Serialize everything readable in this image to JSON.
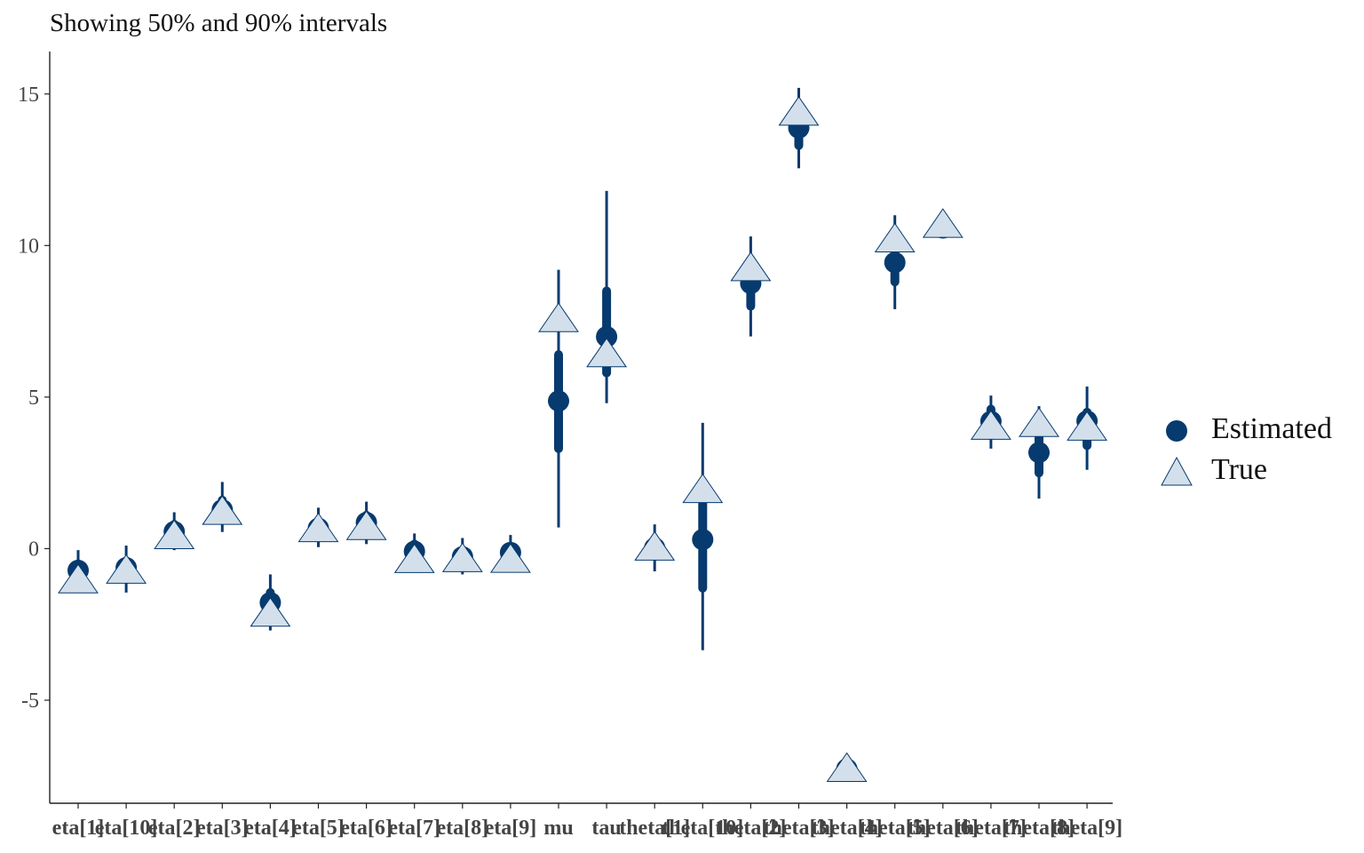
{
  "chart_data": {
    "type": "scatter",
    "subtitle": "Showing 50% and 90% intervals",
    "title": "",
    "xlabel": "",
    "ylabel": "",
    "ylim": [
      -8.4,
      16.4
    ],
    "yticks": [
      -5,
      0,
      5,
      10,
      15
    ],
    "colors": {
      "estimated": "#073a6e",
      "true_fill": "#d3e0ec",
      "true_stroke": "#073a6e"
    },
    "legend": {
      "position": "right",
      "entries": [
        "Estimated",
        "True"
      ]
    },
    "categories": [
      "eta[1]",
      "eta[10]",
      "eta[2]",
      "eta[3]",
      "eta[4]",
      "eta[5]",
      "eta[6]",
      "eta[7]",
      "eta[8]",
      "eta[9]",
      "mu",
      "tau",
      "theta[1]",
      "theta[10]",
      "theta[2]",
      "theta[3]",
      "theta[4]",
      "theta[5]",
      "theta[6]",
      "theta[7]",
      "theta[8]",
      "theta[9]"
    ],
    "series": [
      {
        "name": "Estimated",
        "values": [
          -0.72,
          -0.63,
          0.56,
          1.28,
          -1.78,
          0.67,
          0.86,
          -0.09,
          -0.27,
          -0.13,
          4.87,
          6.99,
          0.02,
          0.3,
          8.75,
          13.88,
          -7.27,
          9.44,
          10.58,
          4.2,
          3.17,
          4.21
        ],
        "ci50": [
          [
            -0.95,
            -0.5
          ],
          [
            -0.85,
            -0.4
          ],
          [
            0.3,
            0.8
          ],
          [
            1.0,
            1.6
          ],
          [
            -2.05,
            -1.45
          ],
          [
            0.45,
            0.9
          ],
          [
            0.6,
            1.1
          ],
          [
            -0.3,
            0.15
          ],
          [
            -0.45,
            -0.1
          ],
          [
            -0.3,
            0.05
          ],
          [
            3.3,
            6.4
          ],
          [
            5.8,
            8.5
          ],
          [
            -0.2,
            0.25
          ],
          [
            -1.3,
            1.7
          ],
          [
            8.0,
            9.4
          ],
          [
            13.3,
            14.4
          ],
          [
            -7.35,
            -7.2
          ],
          [
            8.8,
            10.0
          ],
          [
            10.45,
            10.72
          ],
          [
            3.8,
            4.6
          ],
          [
            2.5,
            3.8
          ],
          [
            3.4,
            4.5
          ]
        ],
        "ci90": [
          [
            -1.35,
            -0.05
          ],
          [
            -1.45,
            0.1
          ],
          [
            -0.05,
            1.2
          ],
          [
            0.55,
            2.2
          ],
          [
            -2.7,
            -0.85
          ],
          [
            0.05,
            1.35
          ],
          [
            0.15,
            1.55
          ],
          [
            -0.6,
            0.5
          ],
          [
            -0.85,
            0.35
          ],
          [
            -0.65,
            0.45
          ],
          [
            0.7,
            9.2
          ],
          [
            4.8,
            11.8
          ],
          [
            -0.75,
            0.8
          ],
          [
            -3.35,
            4.15
          ],
          [
            7.0,
            10.3
          ],
          [
            12.55,
            15.2
          ],
          [
            -7.45,
            -7.1
          ],
          [
            7.9,
            11.0
          ],
          [
            10.35,
            10.9
          ],
          [
            3.3,
            5.05
          ],
          [
            1.65,
            4.7
          ],
          [
            2.6,
            5.35
          ]
        ]
      },
      {
        "name": "True",
        "values": [
          -1.05,
          -0.73,
          0.41,
          1.21,
          -2.15,
          0.64,
          0.71,
          -0.38,
          -0.35,
          -0.37,
          7.57,
          6.41,
          0.03,
          1.93,
          9.25,
          14.38,
          -7.27,
          10.2,
          10.68,
          4.02,
          4.11,
          3.99
        ]
      }
    ]
  }
}
